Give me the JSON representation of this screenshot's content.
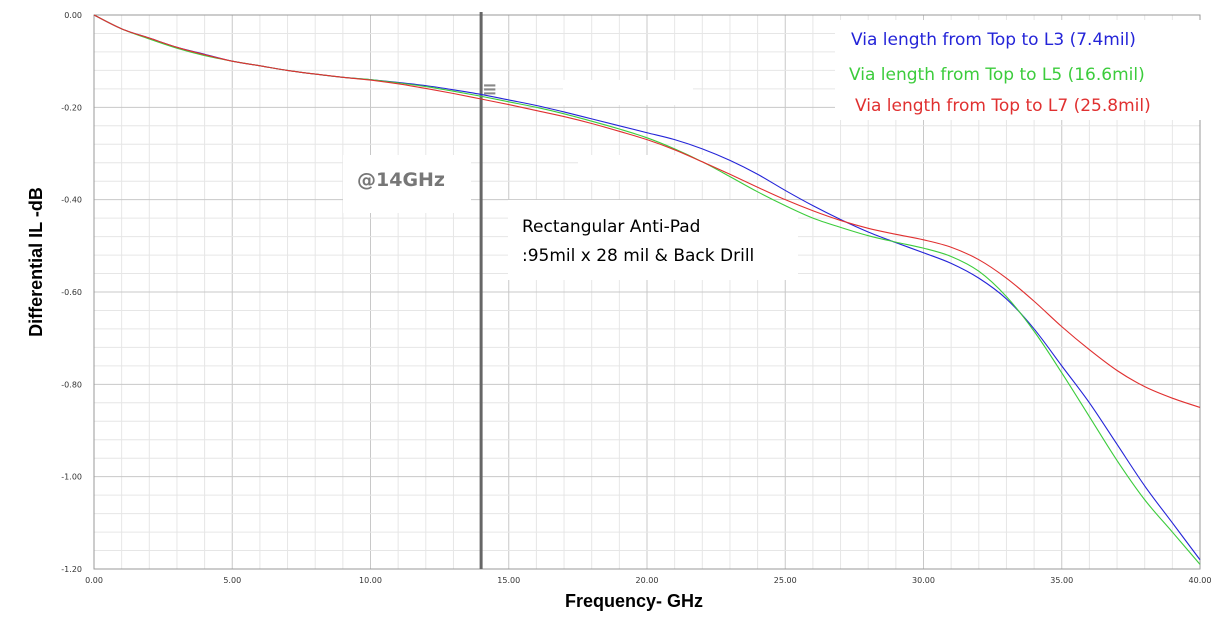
{
  "chart_data": {
    "type": "line",
    "xlabel": "Frequency- GHz",
    "ylabel": "Differential IL -dB",
    "xlim": [
      0,
      40
    ],
    "ylim": [
      -1.2,
      0
    ],
    "x_ticks": [
      "0.00",
      "5.00",
      "10.00",
      "15.00",
      "20.00",
      "25.00",
      "30.00",
      "35.00",
      "40.00"
    ],
    "y_ticks": [
      "0.00",
      "-0.20",
      "-0.40",
      "-0.60",
      "-0.80",
      "-1.00",
      "-1.20"
    ],
    "grid": true,
    "legend_position": "top-right",
    "marker_x": 14,
    "series": [
      {
        "name": "Via length from Top to L3 (7.4mil)",
        "color": "#2424d8",
        "x": [
          0,
          1,
          2,
          3,
          4,
          5,
          6,
          7,
          8,
          9,
          10,
          11,
          12,
          13,
          14,
          15,
          16,
          17,
          18,
          19,
          20,
          21,
          22,
          23,
          24,
          25,
          26,
          27,
          28,
          29,
          30,
          31,
          32,
          33,
          34,
          35,
          36,
          37,
          38,
          39,
          40
        ],
        "y": [
          0,
          -0.03,
          -0.05,
          -0.07,
          -0.085,
          -0.1,
          -0.11,
          -0.12,
          -0.128,
          -0.135,
          -0.14,
          -0.146,
          -0.153,
          -0.162,
          -0.172,
          -0.184,
          -0.196,
          -0.21,
          -0.225,
          -0.24,
          -0.255,
          -0.27,
          -0.29,
          -0.315,
          -0.345,
          -0.38,
          -0.413,
          -0.443,
          -0.47,
          -0.493,
          -0.515,
          -0.538,
          -0.57,
          -0.615,
          -0.68,
          -0.76,
          -0.84,
          -0.93,
          -1.02,
          -1.1,
          -1.18
        ]
      },
      {
        "name": "Via length from Top to L5 (16.6mil)",
        "color": "#3ccc3c",
        "x": [
          0,
          1,
          2,
          3,
          4,
          5,
          6,
          7,
          8,
          9,
          10,
          11,
          12,
          13,
          14,
          15,
          16,
          17,
          18,
          19,
          20,
          21,
          22,
          23,
          24,
          25,
          26,
          27,
          28,
          29,
          30,
          31,
          32,
          33,
          34,
          35,
          36,
          37,
          38,
          39,
          40
        ],
        "y": [
          0,
          -0.03,
          -0.052,
          -0.072,
          -0.088,
          -0.1,
          -0.11,
          -0.12,
          -0.128,
          -0.135,
          -0.14,
          -0.147,
          -0.155,
          -0.165,
          -0.176,
          -0.188,
          -0.2,
          -0.214,
          -0.23,
          -0.247,
          -0.266,
          -0.29,
          -0.318,
          -0.35,
          -0.383,
          -0.413,
          -0.44,
          -0.46,
          -0.478,
          -0.492,
          -0.505,
          -0.523,
          -0.555,
          -0.61,
          -0.685,
          -0.775,
          -0.87,
          -0.965,
          -1.05,
          -1.12,
          -1.19
        ]
      },
      {
        "name": "Via length from Top to L7 (25.8mil)",
        "color": "#e03030",
        "x": [
          0,
          1,
          2,
          3,
          4,
          5,
          6,
          7,
          8,
          9,
          10,
          11,
          12,
          13,
          14,
          15,
          16,
          17,
          18,
          19,
          20,
          21,
          22,
          23,
          24,
          25,
          26,
          27,
          28,
          29,
          30,
          31,
          32,
          33,
          34,
          35,
          36,
          37,
          38,
          39,
          40
        ],
        "y": [
          0,
          -0.03,
          -0.05,
          -0.07,
          -0.086,
          -0.1,
          -0.11,
          -0.12,
          -0.128,
          -0.135,
          -0.141,
          -0.149,
          -0.159,
          -0.17,
          -0.182,
          -0.194,
          -0.207,
          -0.22,
          -0.235,
          -0.252,
          -0.27,
          -0.292,
          -0.318,
          -0.345,
          -0.373,
          -0.4,
          -0.424,
          -0.445,
          -0.462,
          -0.475,
          -0.487,
          -0.503,
          -0.53,
          -0.57,
          -0.62,
          -0.675,
          -0.725,
          -0.77,
          -0.805,
          -0.83,
          -0.85
        ]
      }
    ],
    "annotations": [
      {
        "id": "freq_label",
        "text": "@14GHz"
      },
      {
        "id": "antipad_line1",
        "text": "Rectangular Anti-Pad"
      },
      {
        "id": "antipad_line2",
        "text": ":95mil x 28 mil & Back Drill"
      }
    ]
  }
}
